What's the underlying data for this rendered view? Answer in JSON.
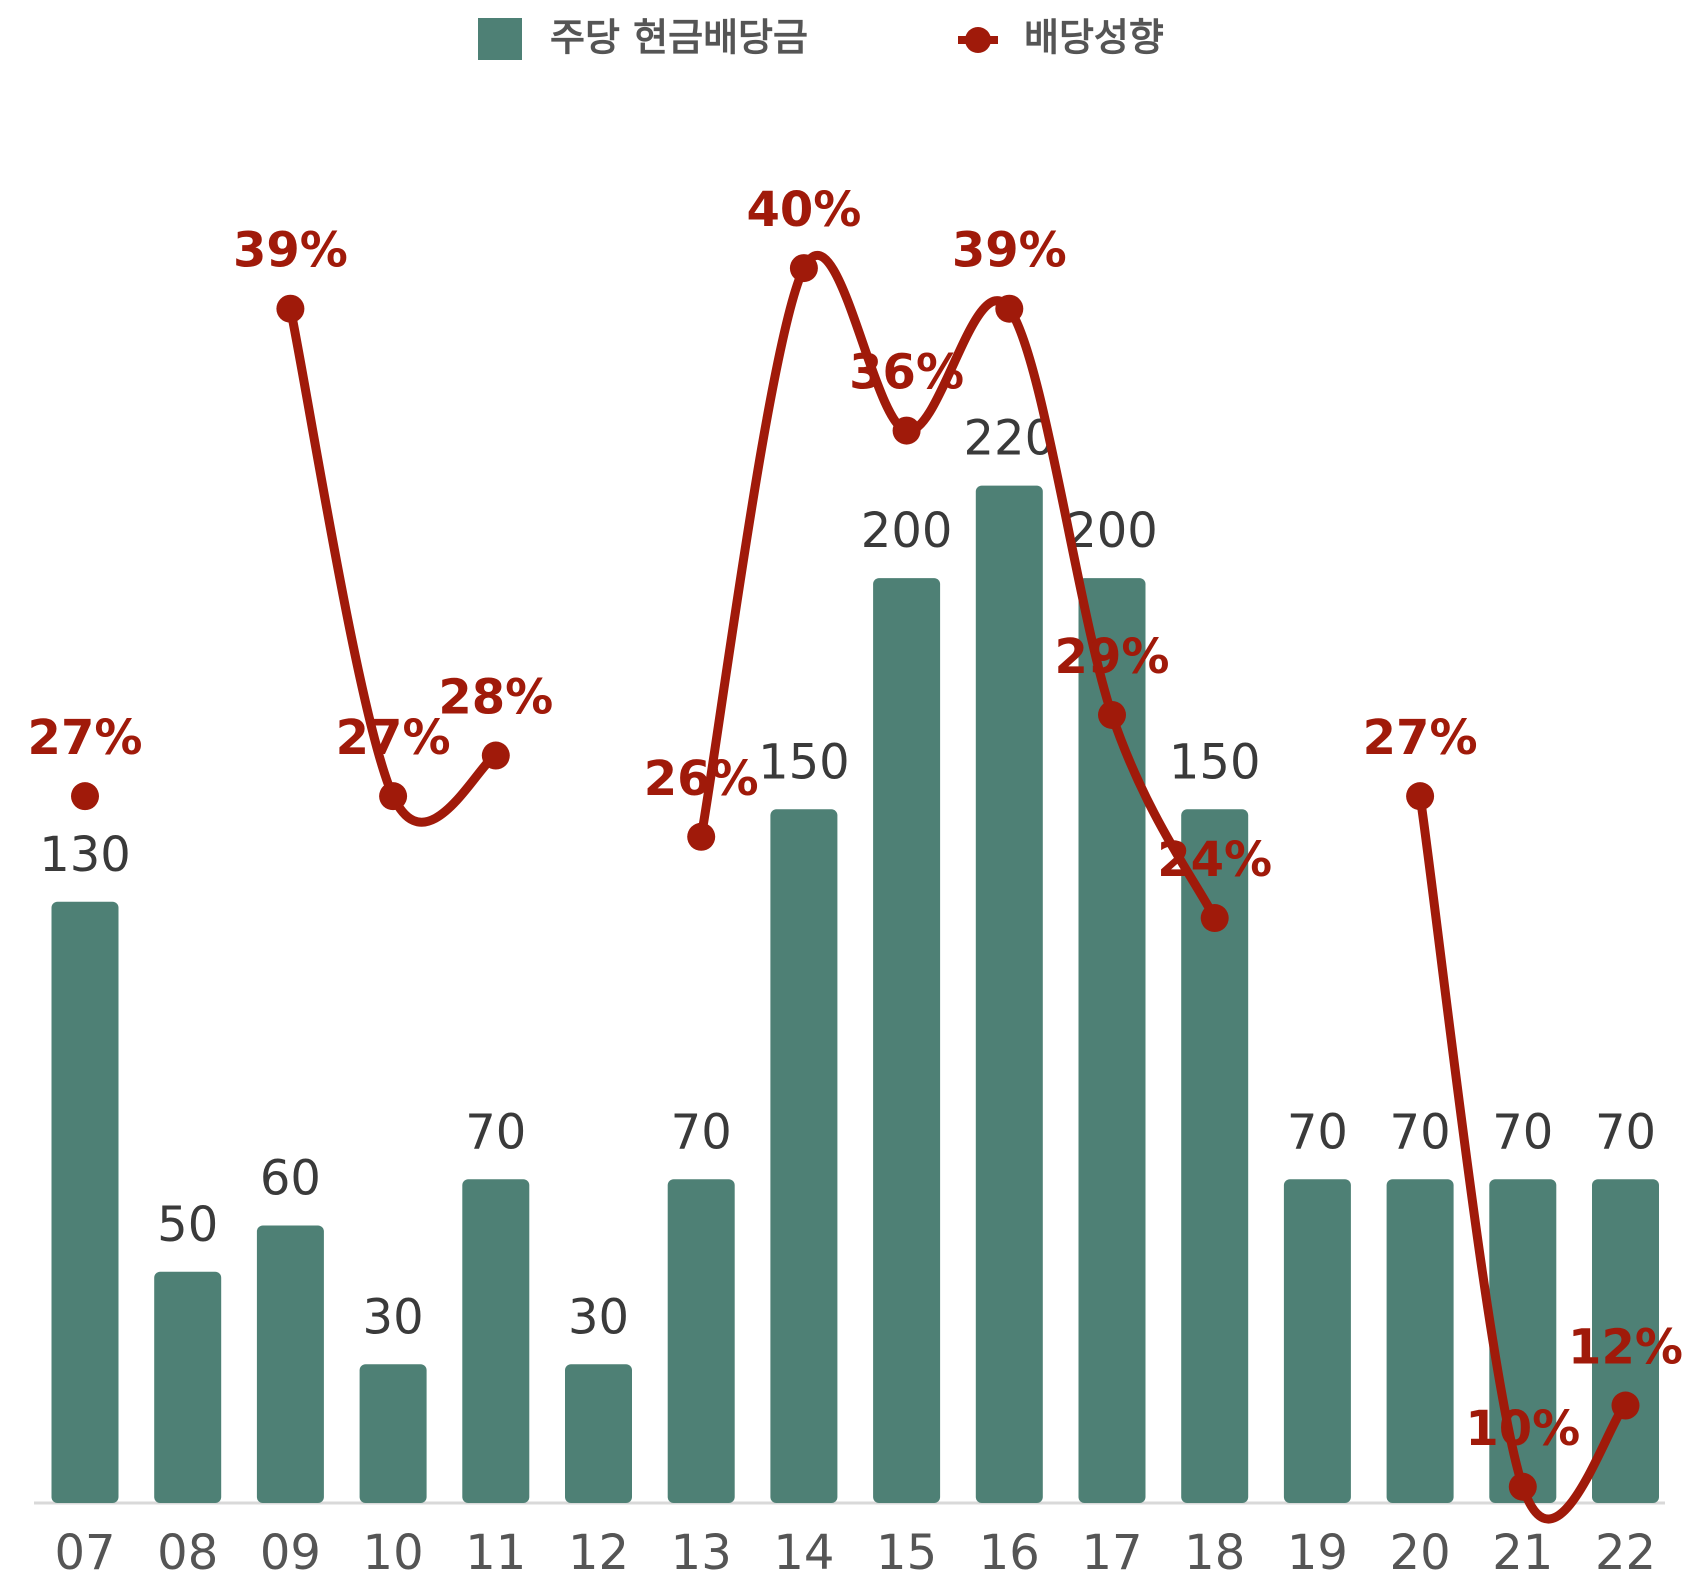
{
  "chart_data": {
    "type": "bar-line",
    "categories": [
      "07",
      "08",
      "09",
      "10",
      "11",
      "12",
      "13",
      "14",
      "15",
      "16",
      "17",
      "18",
      "19",
      "20",
      "21",
      "22"
    ],
    "series": [
      {
        "name": "주당 현금배당금",
        "type": "bar",
        "color": "#4e8075",
        "values": [
          130,
          50,
          60,
          30,
          70,
          30,
          70,
          150,
          200,
          220,
          200,
          150,
          70,
          70,
          70,
          70
        ]
      },
      {
        "name": "배당성향",
        "type": "line",
        "axis": "y2",
        "color": "#a01a0a",
        "smooth": true,
        "values": [
          27,
          null,
          39,
          27,
          28,
          null,
          26,
          40,
          36,
          39,
          29,
          24,
          null,
          27,
          10,
          12
        ],
        "value_labels": [
          "27%",
          null,
          "39%",
          "27%",
          "28%",
          null,
          "26%",
          "40%",
          "36%",
          "39%",
          "29%",
          "24%",
          null,
          "27%",
          "10%",
          "12%"
        ]
      }
    ],
    "ylim": [
      0,
      325
    ],
    "y2lim": [
      9.6,
      46.6
    ],
    "legend": "top"
  }
}
